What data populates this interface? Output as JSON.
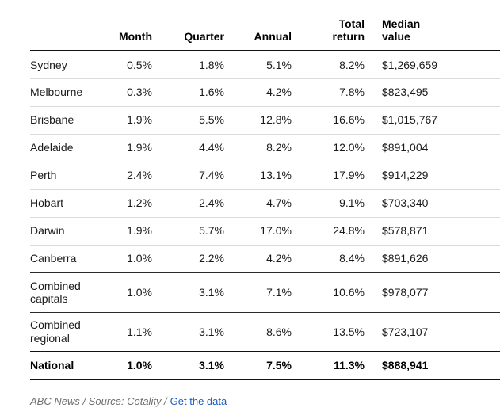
{
  "chart_data": {
    "type": "table",
    "columns": [
      "",
      "Month",
      "Quarter",
      "Annual",
      "Total return",
      "Median value"
    ],
    "rows": [
      {
        "label": "Sydney",
        "month": "0.5%",
        "quarter": "1.8%",
        "annual": "5.1%",
        "total_return": "8.2%",
        "median_value": "$1,269,659"
      },
      {
        "label": "Melbourne",
        "month": "0.3%",
        "quarter": "1.6%",
        "annual": "4.2%",
        "total_return": "7.8%",
        "median_value": "$823,495"
      },
      {
        "label": "Brisbane",
        "month": "1.9%",
        "quarter": "5.5%",
        "annual": "12.8%",
        "total_return": "16.6%",
        "median_value": "$1,015,767"
      },
      {
        "label": "Adelaide",
        "month": "1.9%",
        "quarter": "4.4%",
        "annual": "8.2%",
        "total_return": "12.0%",
        "median_value": "$891,004"
      },
      {
        "label": "Perth",
        "month": "2.4%",
        "quarter": "7.4%",
        "annual": "13.1%",
        "total_return": "17.9%",
        "median_value": "$914,229"
      },
      {
        "label": "Hobart",
        "month": "1.2%",
        "quarter": "2.4%",
        "annual": "4.7%",
        "total_return": "9.1%",
        "median_value": "$703,340"
      },
      {
        "label": "Darwin",
        "month": "1.9%",
        "quarter": "5.7%",
        "annual": "17.0%",
        "total_return": "24.8%",
        "median_value": "$578,871"
      },
      {
        "label": "Canberra",
        "month": "1.0%",
        "quarter": "2.2%",
        "annual": "4.2%",
        "total_return": "8.4%",
        "median_value": "$891,626"
      },
      {
        "label": "Combined capitals",
        "month": "1.0%",
        "quarter": "3.1%",
        "annual": "7.1%",
        "total_return": "10.6%",
        "median_value": "$978,077"
      },
      {
        "label": "Combined regional",
        "month": "1.1%",
        "quarter": "3.1%",
        "annual": "8.6%",
        "total_return": "13.5%",
        "median_value": "$723,107"
      },
      {
        "label": "National",
        "month": "1.0%",
        "quarter": "3.1%",
        "annual": "7.5%",
        "total_return": "11.3%",
        "median_value": "$888,941"
      }
    ]
  },
  "header_labels": {
    "label": "",
    "month": "Month",
    "quarter": "Quarter",
    "annual": "Annual",
    "total_return": "Total\nreturn",
    "median_value": "Median\nvalue"
  },
  "footer": {
    "credit_prefix": "ABC News / Source: Cotality /",
    "link_label": "Get the data"
  },
  "colors": {
    "link_blue": "#1e5bc6",
    "rule_dark": "#121212",
    "rule_light": "#dbdbdb",
    "body_text": "#1a1a1a",
    "footer_gray": "#6e6e6e"
  }
}
